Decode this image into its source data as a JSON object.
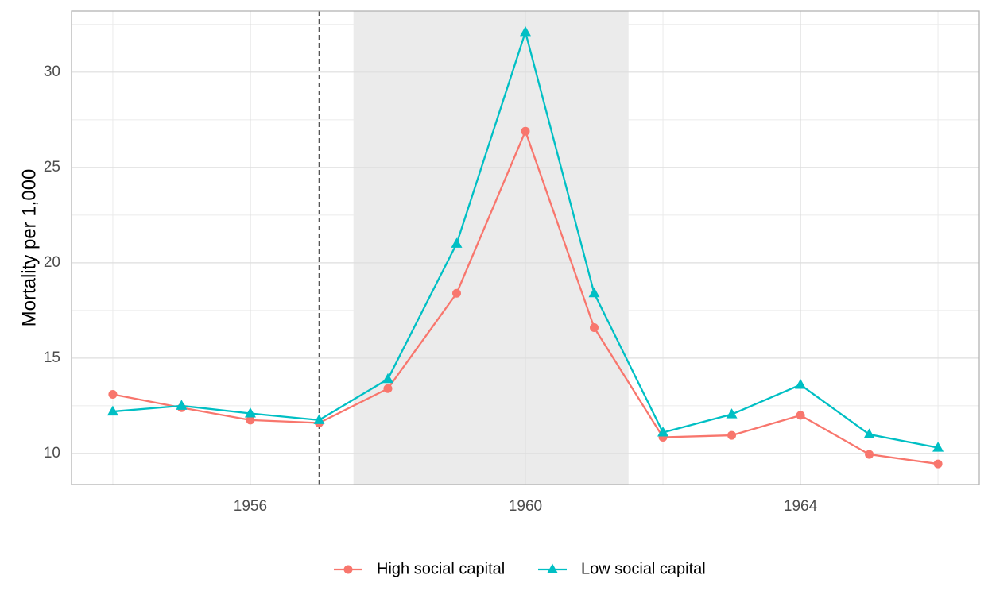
{
  "chart_data": {
    "type": "line",
    "y_label": "Mortality per 1,000",
    "x": [
      1954,
      1955,
      1956,
      1957,
      1958,
      1959,
      1960,
      1961,
      1962,
      1963,
      1964,
      1965,
      1966
    ],
    "series": [
      {
        "name": "High social capital",
        "color": "#F8766D",
        "marker": "circle",
        "values": [
          13.1,
          12.4,
          11.75,
          11.6,
          13.4,
          18.4,
          26.9,
          16.6,
          10.85,
          10.95,
          12.0,
          9.95,
          9.45
        ]
      },
      {
        "name": "Low social capital",
        "color": "#00BFC4",
        "marker": "triangle",
        "values": [
          12.2,
          12.5,
          12.1,
          11.75,
          13.9,
          21.0,
          32.1,
          18.4,
          11.1,
          12.05,
          13.6,
          11.0,
          10.3
        ]
      }
    ],
    "xlim": [
      1953.4,
      1966.6
    ],
    "ylim": [
      8.37,
      33.2
    ],
    "xticks": [
      1956,
      1960,
      1964
    ],
    "yticks": [
      10,
      15,
      20,
      25,
      30
    ],
    "grid": true,
    "legend": "bottom",
    "shaded_x": [
      1957.5,
      1961.5
    ],
    "vline_x": 1957
  }
}
